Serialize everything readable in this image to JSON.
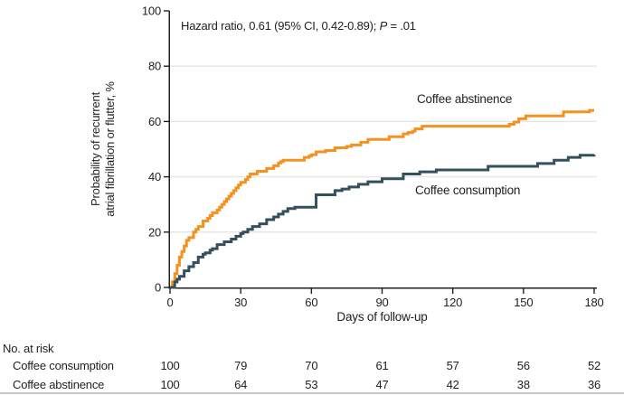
{
  "figure": {
    "annotation": {
      "prefix": "Hazard ratio, 0.61 (95% CI, 0.42-0.89); ",
      "p_label": "P",
      "p_suffix": " = .01"
    },
    "y_axis_title_line1": "Probability of recurrent",
    "y_axis_title_line2": "atrial fibrillation or flutter, %",
    "x_axis_title": "Days of follow-up",
    "curve_labels": {
      "abstinence": "Coffee abstinence",
      "consumption": "Coffee consumption"
    },
    "risk_table_title": "No. at risk"
  },
  "colors": {
    "abstinence": "#F5911E",
    "consumption": "#33505C",
    "grid": "#E7E7E7",
    "axis": "#231F20",
    "text": "#1F1F1F"
  },
  "chart_data": {
    "type": "line",
    "subtype": "kaplan-meier-step",
    "title": "",
    "xlabel": "Days of follow-up",
    "ylabel": "Probability of recurrent atrial fibrillation or flutter, %",
    "xlim": [
      0,
      180
    ],
    "ylim": [
      0,
      100
    ],
    "xticks": [
      0,
      30,
      60,
      90,
      120,
      150,
      180
    ],
    "yticks": [
      0,
      20,
      40,
      60,
      80,
      100
    ],
    "gridlines_y": [
      20,
      40,
      60,
      80
    ],
    "grid": "horizontal-only",
    "legend_position": "direct-labels-on-plot",
    "annotation": "Hazard ratio, 0.61 (95% CI, 0.42-0.89); P = .01",
    "series": [
      {
        "name": "Coffee abstinence",
        "color": "#F5911E",
        "points": [
          [
            0,
            0
          ],
          [
            1,
            2
          ],
          [
            2,
            5
          ],
          [
            3,
            8
          ],
          [
            4,
            11
          ],
          [
            5,
            13
          ],
          [
            6,
            15
          ],
          [
            7,
            17
          ],
          [
            8,
            18
          ],
          [
            10,
            20
          ],
          [
            11,
            21
          ],
          [
            12,
            22
          ],
          [
            14,
            24
          ],
          [
            16,
            25
          ],
          [
            17,
            26
          ],
          [
            18,
            27
          ],
          [
            20,
            28
          ],
          [
            21,
            29
          ],
          [
            22,
            30
          ],
          [
            23,
            31
          ],
          [
            24,
            32
          ],
          [
            25,
            33
          ],
          [
            26,
            34
          ],
          [
            27,
            35
          ],
          [
            28,
            36
          ],
          [
            29,
            37
          ],
          [
            30,
            38
          ],
          [
            32,
            39
          ],
          [
            33,
            40
          ],
          [
            34,
            41
          ],
          [
            37,
            42
          ],
          [
            41,
            43
          ],
          [
            44,
            44
          ],
          [
            46,
            45
          ],
          [
            47,
            45.5
          ],
          [
            48,
            46
          ],
          [
            57,
            47
          ],
          [
            59,
            47.5
          ],
          [
            60,
            48
          ],
          [
            62,
            49
          ],
          [
            66,
            49.5
          ],
          [
            70,
            50.5
          ],
          [
            75,
            51
          ],
          [
            77,
            51.5
          ],
          [
            81,
            52.5
          ],
          [
            84,
            53.5
          ],
          [
            93,
            54.5
          ],
          [
            99,
            55.5
          ],
          [
            101,
            56
          ],
          [
            103,
            56.5
          ],
          [
            104,
            57.3
          ],
          [
            107,
            58.3
          ],
          [
            144,
            59
          ],
          [
            146,
            59.8
          ],
          [
            148,
            61
          ],
          [
            151,
            62
          ],
          [
            167,
            63.5
          ],
          [
            178,
            64
          ],
          [
            180,
            64
          ]
        ]
      },
      {
        "name": "Coffee consumption",
        "color": "#33505C",
        "points": [
          [
            0,
            0
          ],
          [
            2,
            2
          ],
          [
            3,
            3
          ],
          [
            4,
            4
          ],
          [
            6,
            6
          ],
          [
            8,
            7.5
          ],
          [
            10,
            9
          ],
          [
            12,
            11
          ],
          [
            14,
            12
          ],
          [
            15,
            12.5
          ],
          [
            17,
            13.5
          ],
          [
            18,
            14
          ],
          [
            20,
            15.5
          ],
          [
            23,
            16.5
          ],
          [
            26,
            17.5
          ],
          [
            28,
            18.5
          ],
          [
            30,
            19.5
          ],
          [
            31,
            20
          ],
          [
            33,
            21
          ],
          [
            35,
            22
          ],
          [
            38,
            23
          ],
          [
            41,
            24.5
          ],
          [
            44,
            25.5
          ],
          [
            46,
            26.5
          ],
          [
            48,
            27.5
          ],
          [
            50,
            28.5
          ],
          [
            53,
            29
          ],
          [
            62,
            33.5
          ],
          [
            70,
            35
          ],
          [
            73,
            35.6
          ],
          [
            76,
            36.3
          ],
          [
            80,
            37.3
          ],
          [
            84,
            38.2
          ],
          [
            90,
            39.3
          ],
          [
            99,
            41
          ],
          [
            106,
            41.8
          ],
          [
            113,
            42.5
          ],
          [
            135,
            43.8
          ],
          [
            156,
            44.8
          ],
          [
            163,
            46
          ],
          [
            169,
            47
          ],
          [
            174,
            47.8
          ],
          [
            180,
            48
          ]
        ]
      }
    ],
    "risk_table": {
      "title": "No. at risk",
      "timepoints": [
        0,
        30,
        60,
        90,
        120,
        150,
        180
      ],
      "rows": [
        {
          "label": "Coffee consumption",
          "values": [
            100,
            79,
            70,
            61,
            57,
            56,
            52
          ]
        },
        {
          "label": "Coffee abstinence",
          "values": [
            100,
            64,
            53,
            47,
            42,
            38,
            36
          ]
        }
      ]
    }
  }
}
